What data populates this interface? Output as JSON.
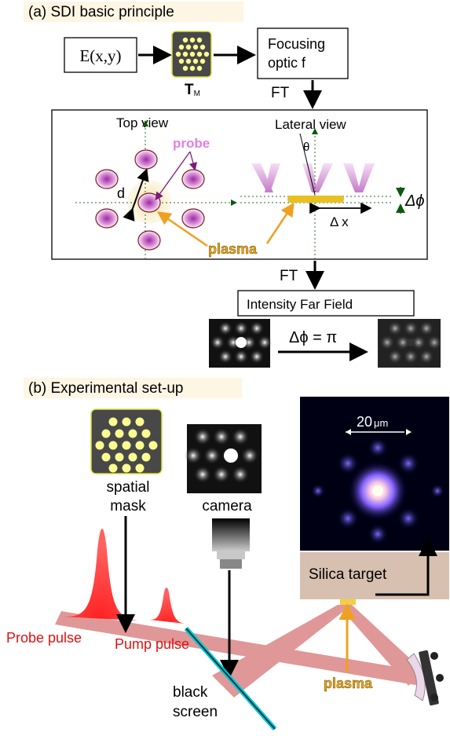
{
  "section_a": {
    "title": "(a) SDI basic principle",
    "field_box": "E(x,y)",
    "mask_label": "T",
    "mask_subscript": "M",
    "optic_box_line1": "Focusing",
    "optic_box_line2": "optic f",
    "ft_label_1": "FT",
    "top_view": "Top view",
    "lateral_view": "Lateral view",
    "probe": "probe",
    "d_label": "d",
    "theta": "θ",
    "delta_phi": "Δϕ",
    "delta_x": "Δ x",
    "plasma": "plasma",
    "ft_label_2": "FT",
    "far_field_box": "Intensity Far Field",
    "phase_shift_label": "Δϕ = π"
  },
  "section_b": {
    "title": "(b) Experimental set-up",
    "spatial_mask_line1": "spatial",
    "spatial_mask_line2": "mask",
    "camera": "camera",
    "scale_bar": "20",
    "scale_unit": "μm",
    "silica_target": "Silica target",
    "probe_pulse": "Probe pulse",
    "pump_pulse": "Pump pulse",
    "black_screen_line1": "black",
    "black_screen_line2": "screen",
    "plasma": "plasma"
  },
  "colors": {
    "probe_magenta": "#c040c0",
    "plasma_orange": "#f0a020",
    "pulse_red": "#e01010",
    "beam_red": "#d06060",
    "silica_beige": "#d8c0b0",
    "screen_cyan": "#00c8d8"
  }
}
